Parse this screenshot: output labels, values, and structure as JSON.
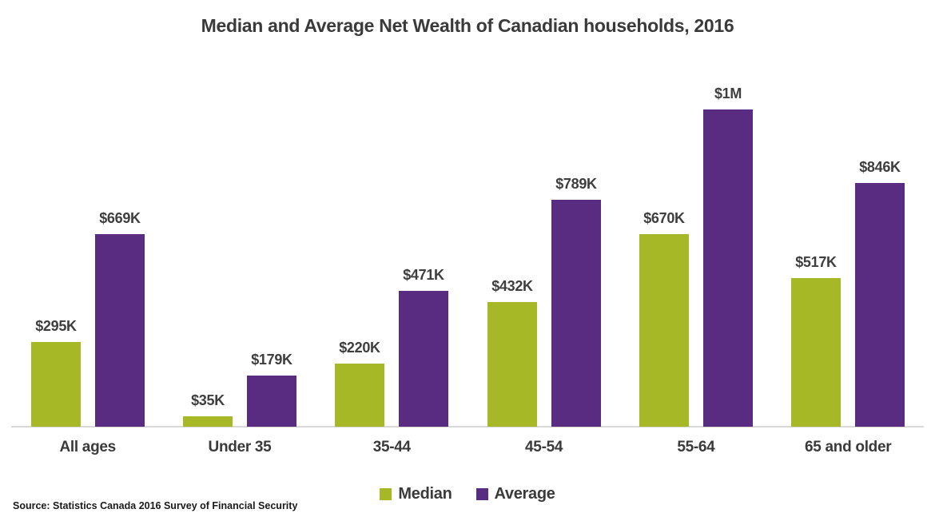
{
  "title": "Median and Average Net Wealth of Canadian households, 2016",
  "source_note": "Source: Statistics Canada 2016 Survey of Financial Security",
  "colors": {
    "median": "#A7B827",
    "average": "#592C82",
    "axis_line": "#D9D9D9",
    "text": "#3E3E3E"
  },
  "legend": {
    "items": [
      {
        "label": "Median",
        "color": "#A7B827"
      },
      {
        "label": "Average",
        "color": "#592C82"
      }
    ]
  },
  "chart_data": {
    "type": "bar",
    "title": "Median and Average Net Wealth of Canadian households, 2016",
    "categories": [
      "All ages",
      "Under 35",
      "35-44",
      "45-54",
      "55-64",
      "65 and older"
    ],
    "series": [
      {
        "name": "Median",
        "color": "#A7B827",
        "values_thousands": [
          295,
          35,
          220,
          432,
          670,
          517
        ],
        "data_labels": [
          "$295K",
          "$35K",
          "$220K",
          "$432K",
          "$670K",
          "$517K"
        ]
      },
      {
        "name": "Average",
        "color": "#592C82",
        "values_thousands": [
          669,
          179,
          471,
          789,
          1103,
          846
        ],
        "data_labels": [
          "$669K",
          "$179K",
          "$471K",
          "$789K",
          "$1M",
          "$846K"
        ]
      }
    ],
    "xlabel": "",
    "ylabel": "",
    "ylim_thousands": [
      0,
      1103
    ],
    "grid": false,
    "y_axis_visible": false,
    "legend_position": "bottom",
    "source": "Source: Statistics Canada 2016 Survey of Financial Security"
  }
}
